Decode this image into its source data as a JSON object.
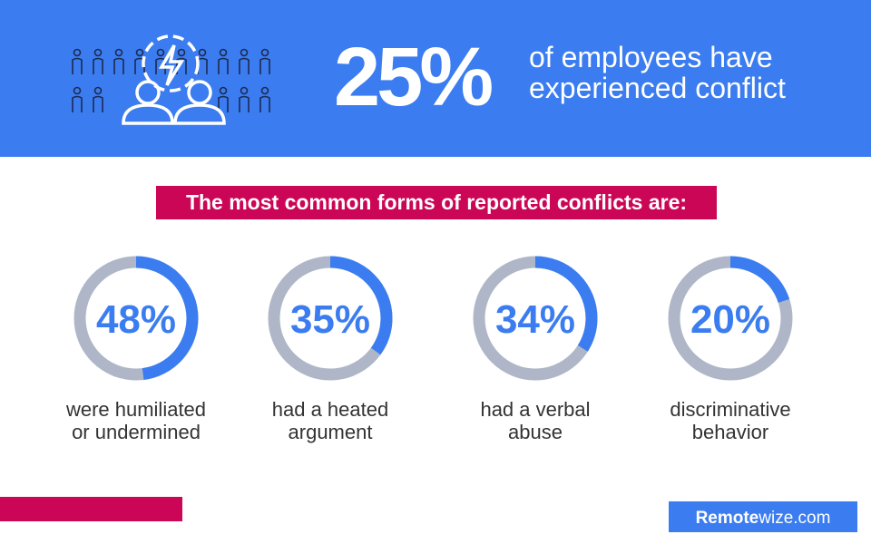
{
  "header": {
    "stat": {
      "value": 25,
      "label": "25%"
    },
    "text": [
      "of employees have",
      "experienced conflict"
    ]
  },
  "subtitle": "The most common forms of reported conflicts are:",
  "items": [
    {
      "value": 48,
      "value_label": "48%",
      "label": [
        "were humiliated",
        "or undermined"
      ]
    },
    {
      "value": 35,
      "value_label": "35%",
      "label": [
        "had a heated",
        "argument"
      ]
    },
    {
      "value": 34,
      "value_label": "34%",
      "label": [
        "had a verbal",
        "abuse"
      ]
    },
    {
      "value": 20,
      "value_label": "20%",
      "label": [
        "discriminative",
        "behavior"
      ]
    }
  ],
  "footer": {
    "brand_bold": "Remote",
    "brand_rest": "wize.com"
  }
}
